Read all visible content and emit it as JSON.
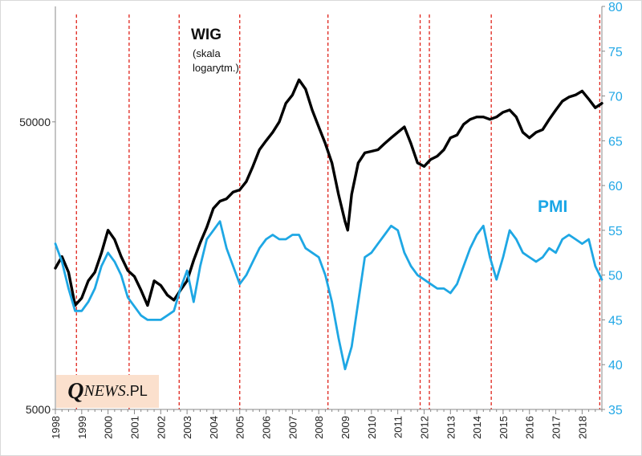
{
  "chart_data": {
    "type": "line",
    "title": "",
    "x_axis": {
      "range": [
        1998.0,
        2018.75
      ],
      "tick_labels": [
        "1998",
        "1999",
        "2000",
        "2001",
        "2002",
        "2003",
        "2004",
        "2005",
        "2006",
        "2007",
        "2008",
        "2009",
        "2010",
        "2011",
        "2012",
        "2013",
        "2014",
        "2015",
        "2016",
        "2017",
        "2018"
      ]
    },
    "y_axis_left": {
      "label": "WIG",
      "scale": "log",
      "range": [
        5000,
        126000
      ],
      "tick_values": [
        5000,
        50000
      ],
      "tick_labels": [
        "5000",
        "50000"
      ]
    },
    "y_axis_right": {
      "label": "PMI",
      "range": [
        35,
        80
      ],
      "tick_values": [
        35,
        40,
        45,
        50,
        55,
        60,
        65,
        70,
        75,
        80
      ],
      "tick_labels": [
        "35",
        "40",
        "45",
        "50",
        "55",
        "60",
        "65",
        "70",
        "75",
        "80"
      ]
    },
    "annotations": {
      "wig_title": "WIG",
      "wig_note_line1": "(skala",
      "wig_note_line2": "logarytm.)",
      "pmi_title": "PMI"
    },
    "vertical_markers": [
      1998.8,
      2000.8,
      2002.7,
      2005.0,
      2008.35,
      2011.85,
      2012.2,
      2014.55,
      2018.67
    ],
    "series": [
      {
        "name": "WIG",
        "color": "#000000",
        "x": [
          1998.0,
          1998.25,
          1998.5,
          1998.75,
          1999.0,
          1999.25,
          1999.5,
          1999.75,
          2000.0,
          2000.25,
          2000.5,
          2000.75,
          2001.0,
          2001.25,
          2001.5,
          2001.75,
          2002.0,
          2002.25,
          2002.5,
          2002.75,
          2003.0,
          2003.25,
          2003.5,
          2003.75,
          2004.0,
          2004.25,
          2004.5,
          2004.75,
          2005.0,
          2005.25,
          2005.5,
          2005.75,
          2006.0,
          2006.25,
          2006.5,
          2006.75,
          2007.0,
          2007.25,
          2007.5,
          2007.75,
          2008.0,
          2008.25,
          2008.5,
          2008.75,
          2009.0,
          2009.1,
          2009.25,
          2009.5,
          2009.75,
          2010.0,
          2010.25,
          2010.5,
          2010.75,
          2011.0,
          2011.25,
          2011.5,
          2011.75,
          2012.0,
          2012.25,
          2012.5,
          2012.75,
          2013.0,
          2013.25,
          2013.5,
          2013.75,
          2014.0,
          2014.25,
          2014.5,
          2014.75,
          2015.0,
          2015.25,
          2015.5,
          2015.75,
          2016.0,
          2016.25,
          2016.5,
          2016.75,
          2017.0,
          2017.25,
          2017.5,
          2017.75,
          2018.0,
          2018.25,
          2018.5,
          2018.75
        ],
        "values": [
          15500,
          17000,
          15000,
          11500,
          12200,
          14000,
          15000,
          17500,
          21000,
          19500,
          17000,
          15200,
          14500,
          13000,
          11500,
          14000,
          13500,
          12500,
          12000,
          13000,
          14000,
          16500,
          19000,
          21500,
          25000,
          26500,
          27000,
          28500,
          29000,
          31000,
          35000,
          40000,
          43000,
          46000,
          50000,
          58000,
          62000,
          70000,
          65000,
          55000,
          48000,
          42000,
          36000,
          28000,
          22500,
          21000,
          28000,
          36000,
          39000,
          39500,
          40000,
          42000,
          44000,
          46000,
          48000,
          42000,
          36000,
          35000,
          37000,
          38000,
          40000,
          44000,
          45000,
          49000,
          51000,
          52000,
          52000,
          51000,
          52000,
          54000,
          55000,
          52000,
          46000,
          44000,
          46000,
          47000,
          51000,
          55000,
          59000,
          61000,
          62000,
          64000,
          60000,
          56000,
          58000
        ]
      },
      {
        "name": "PMI",
        "color": "#1ea7e4",
        "x": [
          1998.0,
          1998.25,
          1998.5,
          1998.75,
          1999.0,
          1999.25,
          1999.5,
          1999.75,
          2000.0,
          2000.25,
          2000.5,
          2000.75,
          2001.0,
          2001.25,
          2001.5,
          2001.75,
          2002.0,
          2002.25,
          2002.5,
          2002.75,
          2003.0,
          2003.25,
          2003.5,
          2003.75,
          2004.0,
          2004.25,
          2004.5,
          2004.75,
          2005.0,
          2005.25,
          2005.5,
          2005.75,
          2006.0,
          2006.25,
          2006.5,
          2006.75,
          2007.0,
          2007.25,
          2007.5,
          2007.75,
          2008.0,
          2008.25,
          2008.5,
          2008.75,
          2009.0,
          2009.25,
          2009.5,
          2009.75,
          2010.0,
          2010.25,
          2010.5,
          2010.75,
          2011.0,
          2011.25,
          2011.5,
          2011.75,
          2012.0,
          2012.25,
          2012.5,
          2012.75,
          2013.0,
          2013.25,
          2013.5,
          2013.75,
          2014.0,
          2014.25,
          2014.5,
          2014.75,
          2015.0,
          2015.25,
          2015.5,
          2015.75,
          2016.0,
          2016.25,
          2016.5,
          2016.75,
          2017.0,
          2017.25,
          2017.5,
          2017.75,
          2018.0,
          2018.25,
          2018.5,
          2018.75
        ],
        "values": [
          53.5,
          51.5,
          48.5,
          46.0,
          46.0,
          47.0,
          48.5,
          51.0,
          52.5,
          51.5,
          50.0,
          47.5,
          46.5,
          45.5,
          45.0,
          45.0,
          45.0,
          45.5,
          46.0,
          48.5,
          50.5,
          47.0,
          51.0,
          54.0,
          55.0,
          56.0,
          53.0,
          51.0,
          49.0,
          50.0,
          51.5,
          53.0,
          54.0,
          54.5,
          54.0,
          54.0,
          54.5,
          54.5,
          53.0,
          52.5,
          52.0,
          50.0,
          47.0,
          43.0,
          39.5,
          42.0,
          47.0,
          52.0,
          52.5,
          53.5,
          54.5,
          55.5,
          55.0,
          52.5,
          51.0,
          50.0,
          49.5,
          49.0,
          48.5,
          48.5,
          48.0,
          49.0,
          51.0,
          53.0,
          54.5,
          55.5,
          52.0,
          49.5,
          52.0,
          55.0,
          54.0,
          52.5,
          52.0,
          51.5,
          52.0,
          53.0,
          52.5,
          54.0,
          54.5,
          54.0,
          53.5,
          54.0,
          51.0,
          49.5
        ]
      }
    ]
  }
}
